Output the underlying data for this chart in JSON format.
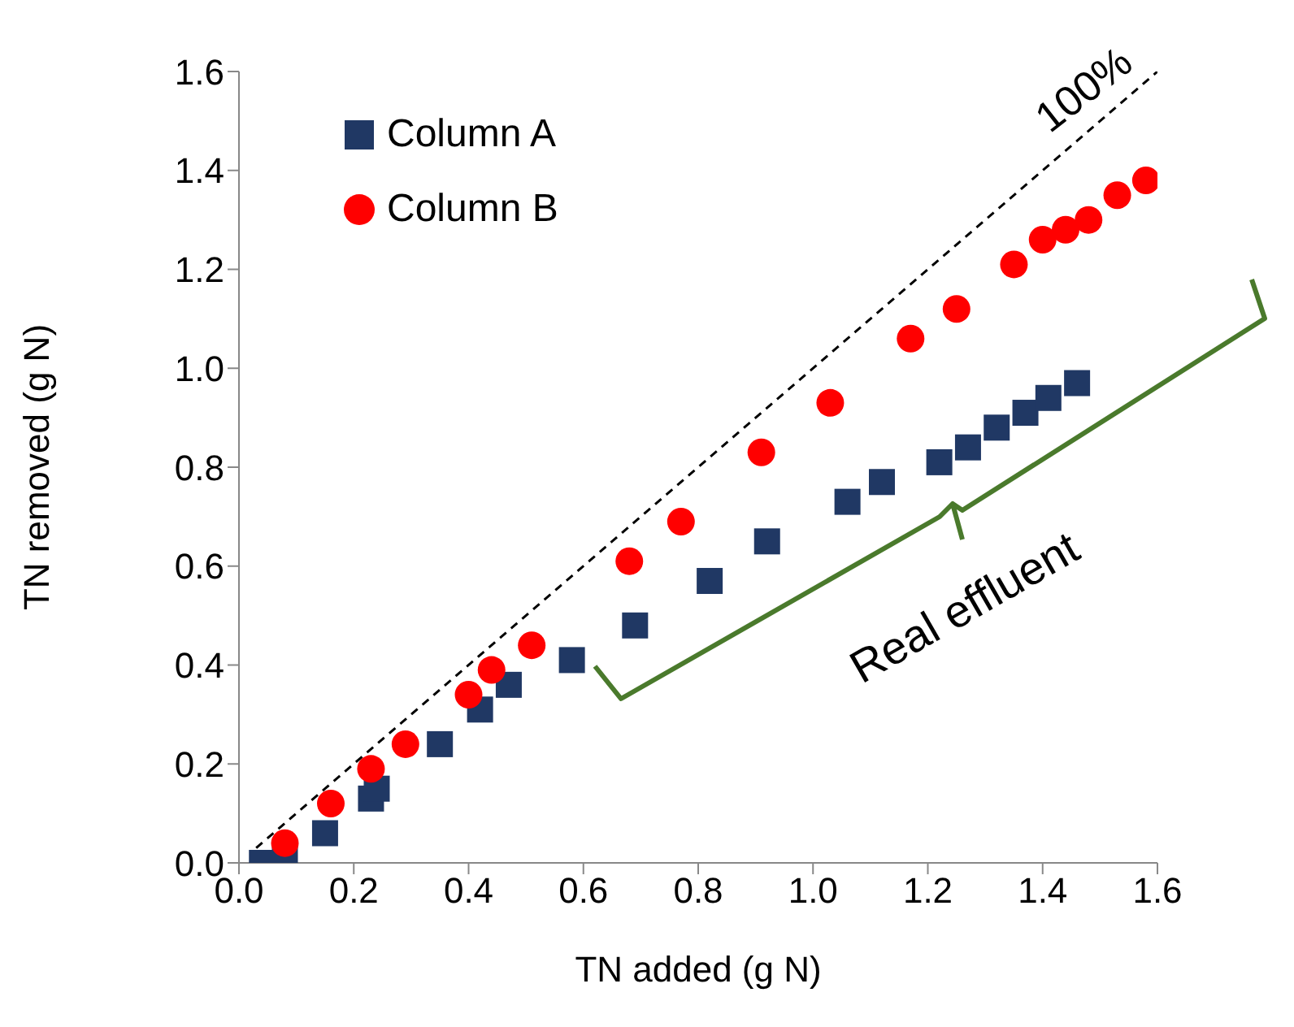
{
  "chart_data": {
    "type": "scatter",
    "xlabel": "TN added (g N)",
    "ylabel": "TN removed (g N)",
    "xlim": [
      0,
      1.6
    ],
    "ylim": [
      0,
      1.6
    ],
    "xticks": [
      {
        "value": 0,
        "label": "0.0"
      },
      {
        "value": 0.2,
        "label": "0.2"
      },
      {
        "value": 0.4,
        "label": "0.4"
      },
      {
        "value": 0.6,
        "label": "0.6"
      },
      {
        "value": 0.8,
        "label": "0.8"
      },
      {
        "value": 1,
        "label": "1.0"
      },
      {
        "value": 1.2,
        "label": "1.2"
      },
      {
        "value": 1.4,
        "label": "1.4"
      },
      {
        "value": 1.6,
        "label": "1.6"
      }
    ],
    "yticks": [
      {
        "value": 0,
        "label": "0.0"
      },
      {
        "value": 0.2,
        "label": "0.2"
      },
      {
        "value": 0.4,
        "label": "0.4"
      },
      {
        "value": 0.6,
        "label": "0.6"
      },
      {
        "value": 0.8,
        "label": "0.8"
      },
      {
        "value": 1,
        "label": "1.0"
      },
      {
        "value": 1.2,
        "label": "1.2"
      },
      {
        "value": 1.4,
        "label": "1.4"
      },
      {
        "value": 1.6,
        "label": "1.6"
      }
    ],
    "grid": false,
    "legend": "top left",
    "series": [
      {
        "name": "Column A",
        "color": "#203864",
        "marker": "square",
        "x": [
          0.04,
          0.08,
          0.15,
          0.23,
          0.24,
          0.35,
          0.42,
          0.47,
          0.58,
          0.69,
          0.82,
          0.92,
          1.06,
          1.12,
          1.22,
          1.27,
          1.32,
          1.37,
          1.41,
          1.46
        ],
        "values": [
          0.0,
          0.01,
          0.06,
          0.13,
          0.15,
          0.24,
          0.31,
          0.36,
          0.41,
          0.48,
          0.57,
          0.65,
          0.73,
          0.77,
          0.81,
          0.84,
          0.88,
          0.91,
          0.94,
          0.97
        ]
      },
      {
        "name": "Column B",
        "color": "#ff0000",
        "marker": "circle",
        "x": [
          0.08,
          0.16,
          0.23,
          0.29,
          0.4,
          0.44,
          0.51,
          0.68,
          0.77,
          0.91,
          1.03,
          1.17,
          1.25,
          1.35,
          1.4,
          1.44,
          1.48,
          1.53,
          1.58
        ],
        "values": [
          0.04,
          0.12,
          0.19,
          0.24,
          0.34,
          0.39,
          0.44,
          0.61,
          0.69,
          0.83,
          0.93,
          1.06,
          1.12,
          1.21,
          1.26,
          1.28,
          1.3,
          1.35,
          1.38
        ]
      },
      {
        "type": "line",
        "color": "#000000",
        "line_style": "dashed",
        "marker": "none",
        "x": [
          0.03,
          1.6
        ],
        "values": [
          0.03,
          1.6
        ]
      }
    ],
    "annotations": [
      "100%",
      "Real effluent"
    ]
  }
}
